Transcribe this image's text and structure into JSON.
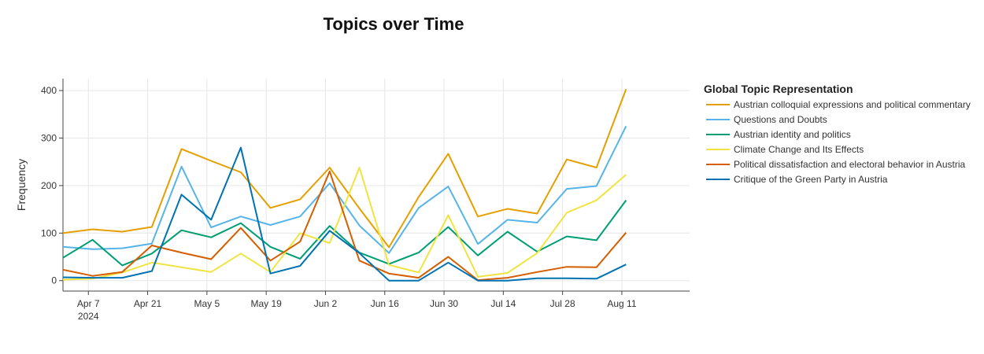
{
  "chart_data": {
    "type": "line",
    "title": "Topics over Time",
    "xlabel": "",
    "ylabel": "Frequency",
    "legend_title": "Global Topic Representation",
    "legend_position": "right",
    "grid": true,
    "x_tick_labels": [
      "Apr 7",
      "Apr 21",
      "May 5",
      "May 19",
      "Jun 2",
      "Jun 16",
      "Jun 30",
      "Jul 14",
      "Jul 28",
      "Aug 11"
    ],
    "x_tick_dates": [
      "2024-04-07",
      "2024-04-21",
      "2024-05-05",
      "2024-05-19",
      "2024-06-02",
      "2024-06-16",
      "2024-06-30",
      "2024-07-14",
      "2024-07-28",
      "2024-08-11"
    ],
    "x_year_label": "2024",
    "y_ticks": [
      0,
      100,
      200,
      300,
      400
    ],
    "xlim": [
      "2024-04-01",
      "2024-08-27"
    ],
    "ylim": [
      -22,
      425
    ],
    "x": [
      "2024-04-01",
      "2024-04-08",
      "2024-04-15",
      "2024-04-22",
      "2024-04-29",
      "2024-05-06",
      "2024-05-13",
      "2024-05-20",
      "2024-05-27",
      "2024-06-03",
      "2024-06-10",
      "2024-06-17",
      "2024-06-24",
      "2024-07-01",
      "2024-07-08",
      "2024-07-15",
      "2024-07-22",
      "2024-07-29",
      "2024-08-05",
      "2024-08-12",
      "2024-08-19",
      "2024-08-27"
    ],
    "series": [
      {
        "name": "Austrian colloquial expressions and political commentary",
        "color": "#E69F00",
        "values": [
          100,
          108,
          103,
          113,
          277,
          252,
          228,
          153,
          171,
          238,
          152,
          70,
          176,
          267,
          135,
          151,
          141,
          255,
          238,
          403,
          null,
          null
        ]
      },
      {
        "name": "Questions and Doubts",
        "color": "#56B4E9",
        "values": [
          71,
          66,
          68,
          78,
          240,
          112,
          135,
          117,
          135,
          205,
          116,
          58,
          153,
          198,
          77,
          128,
          122,
          193,
          199,
          325,
          null,
          null
        ]
      },
      {
        "name": "Austrian identity and politics",
        "color": "#009E73",
        "values": [
          48,
          86,
          32,
          57,
          106,
          91,
          121,
          71,
          46,
          115,
          59,
          35,
          59,
          113,
          53,
          103,
          61,
          93,
          85,
          169,
          null,
          null
        ]
      },
      {
        "name": "Climate Change and Its Effects",
        "color": "#F0E442",
        "values": [
          2,
          4,
          17,
          38,
          28,
          18,
          57,
          18,
          100,
          79,
          238,
          33,
          17,
          138,
          8,
          16,
          58,
          143,
          169,
          223,
          null,
          null
        ]
      },
      {
        "name": "Political dissatisfaction and electoral behavior in Austria",
        "color": "#D55E00",
        "values": [
          23,
          10,
          18,
          74,
          59,
          45,
          111,
          42,
          82,
          230,
          42,
          15,
          6,
          50,
          1,
          6,
          18,
          29,
          28,
          101,
          null,
          null
        ]
      },
      {
        "name": "Critique of the Green Party in Austria",
        "color": "#0072B2",
        "values": [
          7,
          6,
          6,
          20,
          181,
          128,
          280,
          15,
          31,
          105,
          58,
          0,
          0,
          38,
          0,
          0,
          5,
          5,
          4,
          34,
          null,
          null
        ]
      }
    ]
  }
}
